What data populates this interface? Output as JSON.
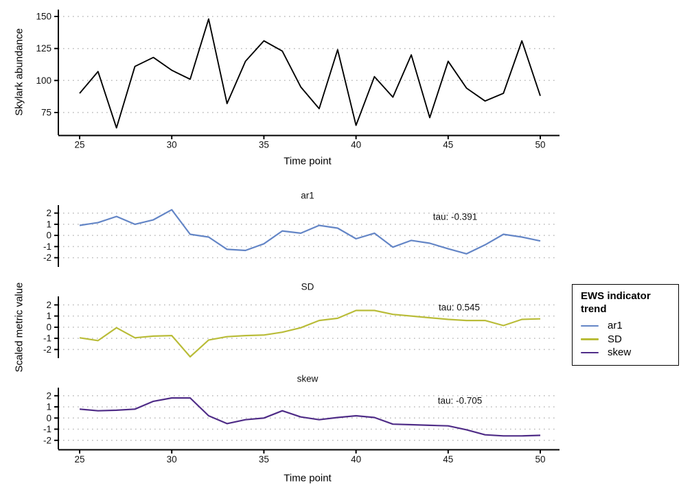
{
  "figure": {
    "top_panel_ylabel": "Skylark abundance",
    "bottom_panels_ylabel": "Scaled metric value",
    "top_panel_xlabel": "Time point",
    "bottom_panels_xlabel": "Time point"
  },
  "legend": {
    "title": "EWS indicator trend",
    "items": [
      {
        "label": "ar1",
        "color": "#6385C6"
      },
      {
        "label": "SD",
        "color": "#B9BC38"
      },
      {
        "label": "skew",
        "color": "#4F2C87"
      }
    ]
  },
  "colors": {
    "abundance_line": "#000000",
    "gridline": "#bababa",
    "axis": "#000000"
  },
  "chart_data": [
    {
      "type": "line",
      "name": "abundance",
      "title": "",
      "xlabel": "Time point",
      "ylabel": "Skylark abundance",
      "x": [
        25,
        26,
        27,
        28,
        29,
        30,
        31,
        32,
        33,
        34,
        35,
        36,
        37,
        38,
        39,
        40,
        41,
        42,
        43,
        44,
        45,
        46,
        47,
        48,
        49,
        50
      ],
      "values": [
        90,
        107,
        63,
        111,
        118,
        108,
        101,
        148,
        82,
        115,
        131,
        123,
        95,
        78,
        124,
        65,
        103,
        87,
        120,
        71,
        115,
        94,
        84,
        90,
        131,
        88
      ],
      "xticks": [
        25,
        30,
        35,
        40,
        45,
        50
      ],
      "yticks": [
        75,
        100,
        125,
        150
      ],
      "ylim": [
        60,
        153
      ],
      "xlim": [
        24,
        51
      ],
      "grid": "dotted-horizontal",
      "color": "#000000"
    },
    {
      "type": "line",
      "name": "ar1",
      "facet_label": "ar1",
      "annotation": "tau: -0.391",
      "x": [
        25,
        26,
        27,
        28,
        29,
        30,
        31,
        32,
        33,
        34,
        35,
        36,
        37,
        38,
        39,
        40,
        41,
        42,
        43,
        44,
        45,
        46,
        47,
        48,
        49,
        50
      ],
      "values": [
        0.9,
        1.15,
        1.7,
        1.0,
        1.4,
        2.3,
        0.1,
        -0.15,
        -1.25,
        -1.35,
        -0.75,
        0.4,
        0.2,
        0.9,
        0.65,
        -0.3,
        0.2,
        -1.05,
        -0.45,
        -0.7,
        -1.2,
        -1.65,
        -0.85,
        0.1,
        -0.15,
        -0.5
      ],
      "yticks": [
        -2,
        -1,
        0,
        1,
        2
      ],
      "ylim": [
        -2.7,
        2.7
      ],
      "grid": "dotted-horizontal",
      "color": "#6385C6"
    },
    {
      "type": "line",
      "name": "SD",
      "facet_label": "SD",
      "annotation": "tau: 0.545",
      "x": [
        25,
        26,
        27,
        28,
        29,
        30,
        31,
        32,
        33,
        34,
        35,
        36,
        37,
        38,
        39,
        40,
        41,
        42,
        43,
        44,
        45,
        46,
        47,
        48,
        49,
        50
      ],
      "values": [
        -0.95,
        -1.2,
        -0.05,
        -0.95,
        -0.8,
        -0.75,
        -2.65,
        -1.15,
        -0.85,
        -0.75,
        -0.7,
        -0.45,
        -0.05,
        0.6,
        0.8,
        1.5,
        1.5,
        1.15,
        1.0,
        0.85,
        0.7,
        0.6,
        0.6,
        0.15,
        0.7,
        0.75
      ],
      "yticks": [
        -2,
        -1,
        0,
        1,
        2
      ],
      "ylim": [
        -2.7,
        2.7
      ],
      "grid": "dotted-horizontal",
      "color": "#B9BC38"
    },
    {
      "type": "line",
      "name": "skew",
      "facet_label": "skew",
      "annotation": "tau: -0.705",
      "x": [
        25,
        26,
        27,
        28,
        29,
        30,
        31,
        32,
        33,
        34,
        35,
        36,
        37,
        38,
        39,
        40,
        41,
        42,
        43,
        44,
        45,
        46,
        47,
        48,
        49,
        50
      ],
      "values": [
        0.8,
        0.65,
        0.7,
        0.8,
        1.5,
        1.8,
        1.8,
        0.2,
        -0.5,
        -0.15,
        0.0,
        0.65,
        0.1,
        -0.15,
        0.05,
        0.2,
        0.05,
        -0.55,
        -0.6,
        -0.65,
        -0.7,
        -1.05,
        -1.5,
        -1.6,
        -1.6,
        -1.55
      ],
      "yticks": [
        -2,
        -1,
        0,
        1,
        2
      ],
      "ylim": [
        -2.7,
        2.7
      ],
      "grid": "dotted-horizontal",
      "color": "#4F2C87"
    }
  ]
}
